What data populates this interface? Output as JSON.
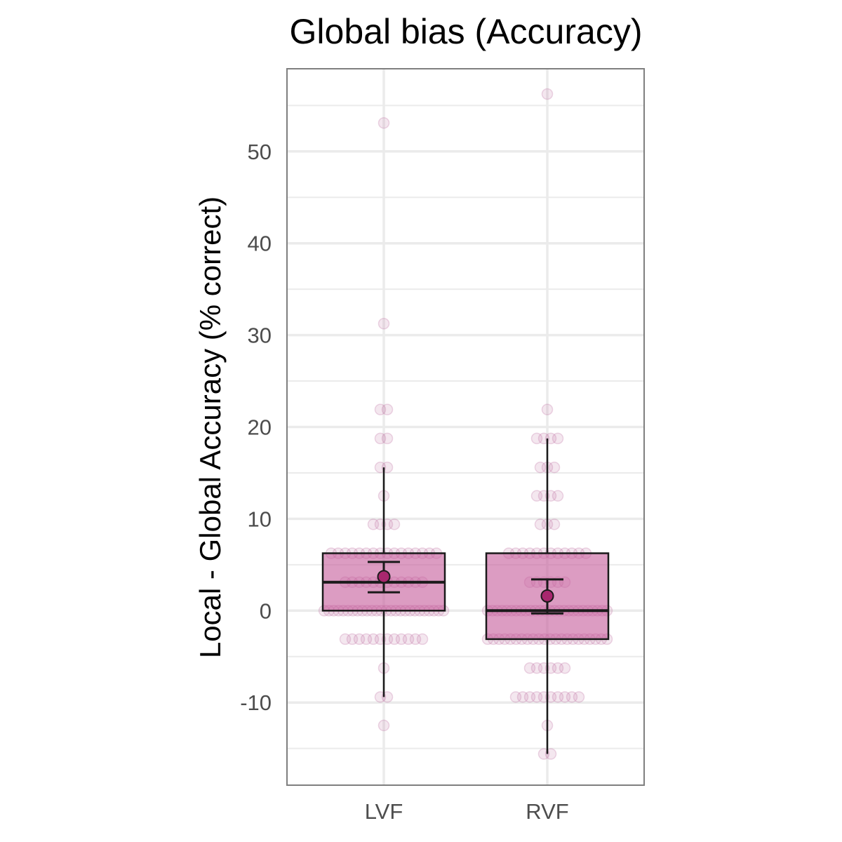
{
  "chart_data": {
    "type": "box",
    "title": "Global bias (Accuracy)",
    "xlabel": "",
    "ylabel": "Local - Global Accuracy (% correct)",
    "categories": [
      "LVF",
      "RVF"
    ],
    "ylim": [
      -19,
      59
    ],
    "yticks": [
      -10,
      0,
      10,
      20,
      30,
      40,
      50
    ],
    "ytick_labels": [
      "-10",
      "0",
      "10",
      "20",
      "30",
      "40",
      "50"
    ],
    "grid": true,
    "boxes": [
      {
        "category": "LVF",
        "lower_whisker": -9.4,
        "q1": 0,
        "median": 3.1,
        "q3": 6.25,
        "upper_whisker": 15.6,
        "mean": 3.7,
        "ci_low": 2.0,
        "ci_high": 5.3
      },
      {
        "category": "RVF",
        "lower_whisker": -15.6,
        "q1": -3.1,
        "median": 0,
        "q3": 6.25,
        "upper_whisker": 18.75,
        "mean": 1.6,
        "ci_low": -0.3,
        "ci_high": 3.4
      }
    ],
    "points": [
      {
        "category": "LVF",
        "values": [
          53.1,
          31.25,
          21.9,
          21.9,
          18.75,
          18.75,
          15.6,
          15.6,
          12.5,
          9.4,
          9.4,
          9.4,
          9.4,
          6.25,
          6.25,
          6.25,
          6.25,
          6.25,
          6.25,
          6.25,
          6.25,
          6.25,
          6.25,
          6.25,
          6.25,
          6.25,
          6.25,
          6.25,
          6.25,
          3.1,
          3.1,
          3.1,
          3.1,
          3.1,
          3.1,
          3.1,
          3.1,
          3.1,
          3.1,
          3.1,
          3.1,
          0,
          0,
          0,
          0,
          0,
          0,
          0,
          0,
          0,
          0,
          0,
          0,
          0,
          0,
          0,
          0,
          0,
          0,
          0,
          0,
          0,
          0,
          0,
          0,
          0,
          0,
          -3.1,
          -3.1,
          -3.1,
          -3.1,
          -3.1,
          -3.1,
          -3.1,
          -3.1,
          -3.1,
          -3.1,
          -3.1,
          -3.1,
          -6.25,
          -9.4,
          -9.4,
          -12.5
        ]
      },
      {
        "category": "RVF",
        "values": [
          56.25,
          21.9,
          18.75,
          18.75,
          18.75,
          18.75,
          15.6,
          15.6,
          15.6,
          12.5,
          12.5,
          12.5,
          12.5,
          9.4,
          9.4,
          9.4,
          6.25,
          6.25,
          6.25,
          6.25,
          6.25,
          6.25,
          6.25,
          6.25,
          6.25,
          6.25,
          6.25,
          6.25,
          3.1,
          3.1,
          3.1,
          3.1,
          3.1,
          3.1,
          0,
          0,
          0,
          0,
          0,
          0,
          0,
          0,
          0,
          0,
          0,
          0,
          0,
          0,
          0,
          0,
          0,
          0,
          0,
          0,
          0,
          0,
          0,
          0,
          0,
          0,
          -3.1,
          -3.1,
          -3.1,
          -3.1,
          -3.1,
          -3.1,
          -3.1,
          -3.1,
          -3.1,
          -3.1,
          -3.1,
          -3.1,
          -3.1,
          -3.1,
          -3.1,
          -3.1,
          -3.1,
          -3.1,
          -3.1,
          -3.1,
          -3.1,
          -3.1,
          -6.25,
          -6.25,
          -6.25,
          -6.25,
          -6.25,
          -6.25,
          -9.4,
          -9.4,
          -9.4,
          -9.4,
          -9.4,
          -9.4,
          -9.4,
          -9.4,
          -9.4,
          -9.4,
          -12.5,
          -15.6,
          -15.6
        ]
      }
    ],
    "colors": {
      "box_fill": "#c45a9a",
      "point": "#c47aa8",
      "mean_point": "#a8276e",
      "stroke": "#1a1a1a",
      "grid": "#ebebeb",
      "panel_border": "#7f7f7f"
    }
  }
}
